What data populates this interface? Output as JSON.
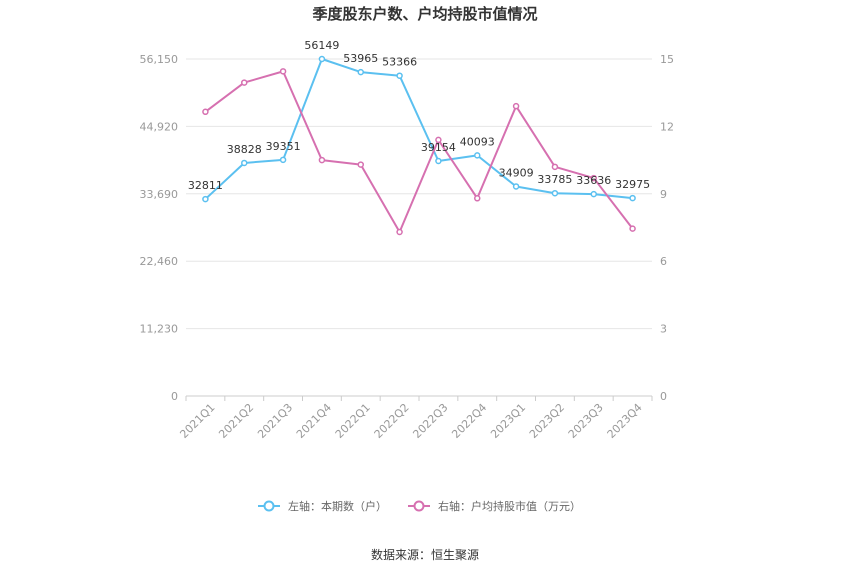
{
  "chart_data": {
    "type": "line",
    "title": "季度股东户数、户均持股市值情况",
    "categories": [
      "2021Q1",
      "2021Q2",
      "2021Q3",
      "2021Q4",
      "2022Q1",
      "2022Q2",
      "2022Q3",
      "2022Q4",
      "2023Q1",
      "2023Q2",
      "2023Q3",
      "2023Q4"
    ],
    "left_axis": {
      "ticks": [
        "0",
        "11,230",
        "22,460",
        "33,690",
        "44,920",
        "56,150"
      ],
      "min": 0,
      "max": 56150
    },
    "right_axis": {
      "ticks": [
        "0",
        "3",
        "6",
        "9",
        "12",
        "15"
      ],
      "min": 0,
      "max": 15
    },
    "series": [
      {
        "name": "左轴：本期数（户）",
        "axis": "left",
        "color": "#5bc0f0",
        "values": [
          32811,
          38828,
          39351,
          56149,
          53965,
          53366,
          39154,
          40093,
          34909,
          33785,
          33636,
          32975
        ],
        "labels": [
          "32811",
          "38828",
          "39351",
          "56149",
          "53965",
          "53366",
          "39154",
          "40093",
          "34909",
          "33785",
          "33636",
          "32975"
        ]
      },
      {
        "name": "右轴：户均持股市值（万元）",
        "axis": "right",
        "color": "#d670b0",
        "values": [
          12.65,
          13.95,
          14.45,
          10.5,
          10.3,
          7.3,
          11.4,
          8.8,
          12.9,
          10.2,
          9.7,
          7.45
        ]
      }
    ],
    "grid": true,
    "legend_position": "bottom"
  },
  "source": "数据来源：恒生聚源"
}
